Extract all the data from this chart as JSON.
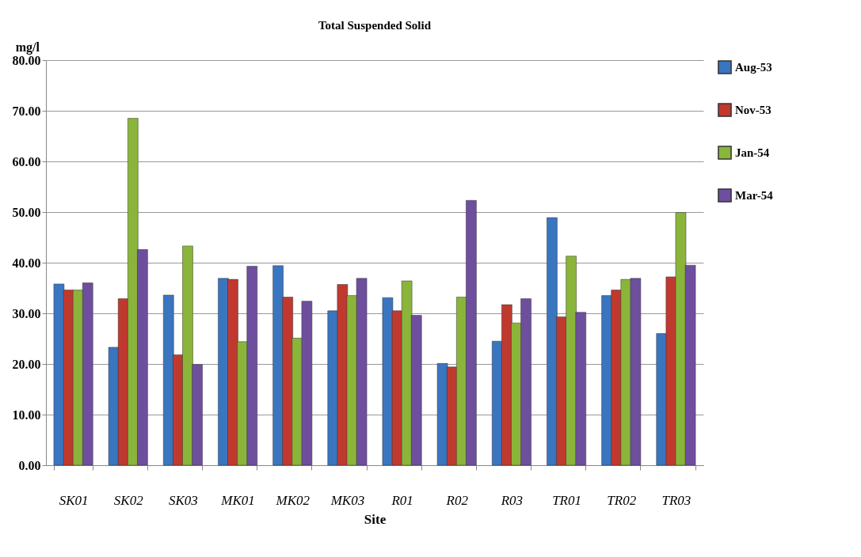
{
  "chart_data": {
    "type": "bar",
    "title": "Total Suspended Solid",
    "xlabel": "Site",
    "ylabel": "mg/l",
    "categories": [
      "SK01",
      "SK02",
      "SK03",
      "MK01",
      "MK02",
      "MK03",
      "R01",
      "R02",
      "R03",
      "TR01",
      "TR02",
      "TR03"
    ],
    "series": [
      {
        "name": "Aug-53",
        "color": "#3a75c0",
        "values": [
          35.8,
          23.3,
          33.6,
          36.9,
          39.4,
          30.5,
          33.1,
          20.1,
          24.5,
          48.9,
          33.5,
          26.0
        ]
      },
      {
        "name": "Nov-53",
        "color": "#c0392f",
        "values": [
          34.6,
          32.9,
          21.8,
          36.7,
          33.2,
          35.7,
          30.5,
          19.4,
          31.7,
          29.3,
          34.6,
          37.2
        ]
      },
      {
        "name": "Jan-54",
        "color": "#8ab53a",
        "values": [
          34.6,
          68.5,
          43.3,
          24.4,
          25.1,
          33.5,
          36.4,
          33.2,
          28.1,
          41.3,
          36.7,
          49.9
        ]
      },
      {
        "name": "Mar-54",
        "color": "#6e4f9e",
        "values": [
          36.0,
          42.6,
          19.9,
          39.3,
          32.4,
          36.9,
          29.6,
          52.3,
          32.9,
          30.2,
          36.9,
          39.5
        ]
      }
    ],
    "ylim": [
      0,
      80
    ],
    "yticks": [
      {
        "value": 0,
        "label": "0.00"
      },
      {
        "value": 10,
        "label": "10.00"
      },
      {
        "value": 20,
        "label": "20.00"
      },
      {
        "value": 30,
        "label": "30.00"
      },
      {
        "value": 40,
        "label": "40.00"
      },
      {
        "value": 50,
        "label": "50.00"
      },
      {
        "value": 60,
        "label": "60.00"
      },
      {
        "value": 70,
        "label": "70.00"
      },
      {
        "value": 80,
        "label": "80.00"
      }
    ],
    "grid": "y",
    "legend": "right"
  }
}
